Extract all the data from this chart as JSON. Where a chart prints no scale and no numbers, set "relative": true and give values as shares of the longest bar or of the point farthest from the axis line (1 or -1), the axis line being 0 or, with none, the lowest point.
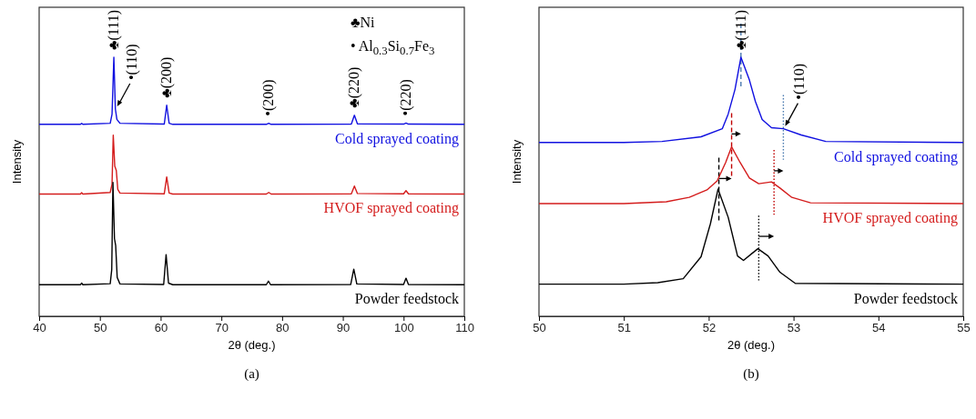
{
  "chart_data": [
    {
      "type": "line",
      "title": "(a)",
      "xlabel": "2θ (deg.)",
      "ylabel": "Intensity",
      "relative": true,
      "xlim": [
        40,
        110
      ],
      "xticks": [
        40,
        50,
        60,
        70,
        80,
        90,
        100,
        110
      ],
      "tick_labels": "x",
      "grid": false,
      "series": [
        {
          "name": "Cold sprayed coating",
          "color": "#1010e0",
          "x": [
            40,
            46.8,
            47,
            47.2,
            51.7,
            52.0,
            52.3,
            52.55,
            52.8,
            53.3,
            60.6,
            61.0,
            61.4,
            62,
            77.4,
            77.8,
            78.2,
            91.4,
            91.9,
            92.4,
            100.0,
            100.4,
            100.8,
            110
          ],
          "values": [
            0.741,
            0.741,
            0.745,
            0.741,
            0.745,
            0.78,
            1.0,
            0.8,
            0.76,
            0.745,
            0.742,
            0.815,
            0.745,
            0.741,
            0.741,
            0.745,
            0.741,
            0.742,
            0.776,
            0.743,
            0.742,
            0.746,
            0.742,
            0.741
          ]
        },
        {
          "name": "HVOF sprayed coating",
          "color": "#d41c1c",
          "x": [
            40,
            46.8,
            47,
            47.2,
            51.7,
            52.0,
            52.2,
            52.45,
            52.7,
            52.95,
            53.3,
            60.6,
            61.0,
            61.4,
            62,
            77.4,
            77.8,
            78.2,
            91.4,
            91.9,
            92.4,
            100.0,
            100.4,
            100.8,
            110
          ],
          "values": [
            0.472,
            0.472,
            0.477,
            0.472,
            0.478,
            0.51,
            0.699,
            0.58,
            0.563,
            0.49,
            0.476,
            0.473,
            0.538,
            0.476,
            0.472,
            0.472,
            0.478,
            0.472,
            0.473,
            0.503,
            0.474,
            0.473,
            0.485,
            0.473,
            0.472
          ]
        },
        {
          "name": "Powder feedstock",
          "color": "#000000",
          "x": [
            40,
            46.8,
            47,
            47.2,
            51.7,
            51.95,
            52.15,
            52.4,
            52.6,
            52.85,
            53.3,
            60.5,
            60.9,
            61.3,
            62,
            77.4,
            77.75,
            78.1,
            91.3,
            91.8,
            92.3,
            100.0,
            100.4,
            100.8,
            110
          ],
          "values": [
            0.122,
            0.122,
            0.128,
            0.122,
            0.126,
            0.18,
            0.517,
            0.3,
            0.273,
            0.15,
            0.125,
            0.123,
            0.238,
            0.128,
            0.122,
            0.122,
            0.136,
            0.122,
            0.123,
            0.182,
            0.125,
            0.123,
            0.147,
            0.123,
            0.122
          ]
        }
      ],
      "annotations": [
        {
          "text": "♣(111)",
          "x": 52.3,
          "y": 1.0
        },
        {
          "text": "•(110)",
          "x": 52.55,
          "y": 0.8
        },
        {
          "text": "♣(200)",
          "x": 61.0,
          "y": 0.815
        },
        {
          "text": "•(200)",
          "x": 77.8,
          "y": 0.745
        },
        {
          "text": "♣(220)",
          "x": 91.9,
          "y": 0.776
        },
        {
          "text": "•(220)",
          "x": 100.4,
          "y": 0.746
        },
        "♣Ni",
        "• Al$_{0.3}$Si$_{0.7}$Fe$_{3}$"
      ]
    },
    {
      "type": "line",
      "title": "(b)",
      "xlabel": "2θ (deg.)",
      "ylabel": "Intensity",
      "relative": true,
      "xlim": [
        50,
        55
      ],
      "xticks": [
        50,
        51,
        52,
        53,
        54,
        55
      ],
      "tick_labels": "x",
      "grid": false,
      "series": [
        {
          "name": "Cold sprayed coating",
          "color": "#1010e0",
          "x": [
            50,
            51.0,
            51.45,
            51.91,
            52.16,
            52.23,
            52.31,
            52.38,
            52.48,
            52.55,
            52.63,
            52.74,
            52.88,
            53.09,
            53.38,
            55
          ],
          "values": [
            0.671,
            0.671,
            0.675,
            0.693,
            0.724,
            0.781,
            0.876,
            1.0,
            0.912,
            0.83,
            0.76,
            0.728,
            0.724,
            0.7,
            0.675,
            0.671
          ]
        },
        {
          "name": "HVOF sprayed coating",
          "color": "#d41c1c",
          "x": [
            50,
            51.0,
            51.5,
            51.77,
            51.98,
            52.1,
            52.2,
            52.27,
            52.37,
            52.48,
            52.59,
            52.74,
            52.84,
            52.98,
            53.2,
            55
          ],
          "values": [
            0.435,
            0.435,
            0.442,
            0.459,
            0.488,
            0.523,
            0.594,
            0.654,
            0.594,
            0.534,
            0.512,
            0.519,
            0.495,
            0.459,
            0.438,
            0.435
          ]
        },
        {
          "name": "Powder feedstock",
          "color": "#000000",
          "x": [
            50,
            51.0,
            51.4,
            51.7,
            51.91,
            52.02,
            52.11,
            52.23,
            52.34,
            52.41,
            52.5,
            52.58,
            52.7,
            52.84,
            53.02,
            55
          ],
          "values": [
            0.124,
            0.124,
            0.13,
            0.145,
            0.23,
            0.357,
            0.491,
            0.382,
            0.233,
            0.216,
            0.24,
            0.261,
            0.233,
            0.17,
            0.127,
            0.124
          ]
        }
      ],
      "ref_lines": [
        {
          "axis": "x",
          "value": 52.12,
          "color": "#000000",
          "line_style": "dashed"
        },
        {
          "axis": "x",
          "value": 52.27,
          "color": "#c00000",
          "line_style": "dashed"
        },
        {
          "axis": "x",
          "value": 52.38,
          "color": "#4a7ab0",
          "line_style": "dashed"
        },
        {
          "axis": "x",
          "value": 52.59,
          "color": "#000000",
          "line_style": "dotted"
        },
        {
          "axis": "x",
          "value": 52.77,
          "color": "#c00000",
          "line_style": "dotted"
        },
        {
          "axis": "x",
          "value": 52.88,
          "color": "#4a7ab0",
          "line_style": "dotted"
        }
      ],
      "annotations": [
        {
          "text": "♣(111)",
          "x": 52.38,
          "y": 1.0
        },
        {
          "text": "•(110)",
          "x": 52.88,
          "y": 0.724
        }
      ]
    }
  ]
}
